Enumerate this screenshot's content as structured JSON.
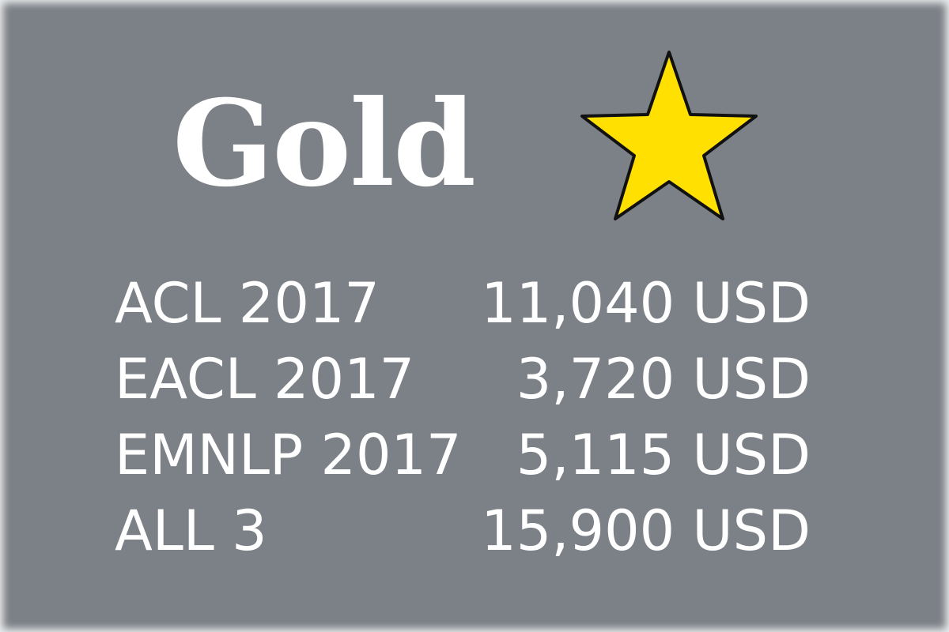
{
  "tier": {
    "title": "Gold",
    "icon": "star-icon",
    "star_color": "#ffe000"
  },
  "colors": {
    "background": "#7c8187",
    "text": "#ffffff"
  },
  "prices": [
    {
      "conference": "ACL 2017",
      "price": "11,040 USD"
    },
    {
      "conference": "EACL 2017",
      "price": "3,720 USD"
    },
    {
      "conference": "EMNLP 2017",
      "price": "5,115 USD"
    },
    {
      "conference": "ALL 3",
      "price": "15,900 USD"
    }
  ]
}
